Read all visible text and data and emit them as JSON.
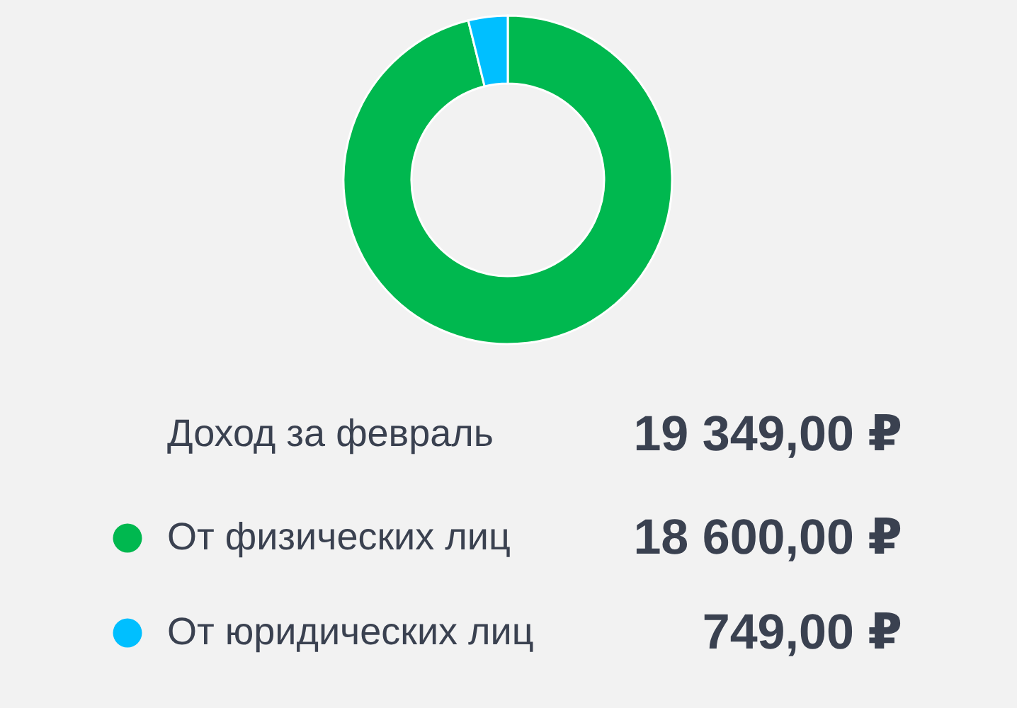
{
  "chart_data": {
    "type": "donut",
    "title": "Доход за февраль",
    "annotations": [
      "19 349,00 ₽"
    ],
    "categories": [
      "От физических лиц",
      "От юридических лиц"
    ],
    "values": [
      18600,
      749
    ],
    "colors": [
      "#00b84f",
      "#00bfff"
    ],
    "value_labels": [
      "18 600,00 ₽",
      "749,00 ₽"
    ],
    "legend": "bottom"
  }
}
